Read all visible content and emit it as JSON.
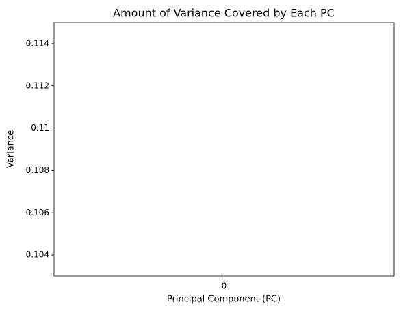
{
  "chart_data": {
    "type": "bar",
    "title": "Amount of Variance Covered by Each PC",
    "x_label": "Principal Component (PC)",
    "y_label": "Variance",
    "categories": [
      "0"
    ],
    "values": [
      null
    ],
    "color": "#1f77b4",
    "ylim": [
      0.103,
      0.115
    ],
    "yticks": [
      0.104,
      0.106,
      0.108,
      0.11,
      0.112,
      0.114
    ],
    "grid": false
  }
}
